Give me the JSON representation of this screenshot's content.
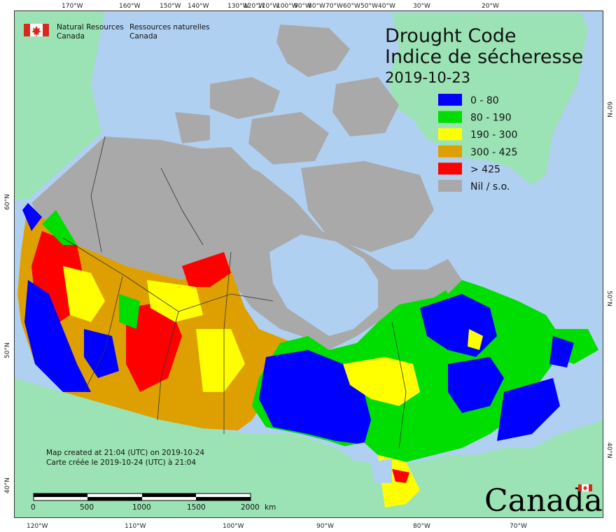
{
  "title_en": "Drought Code",
  "title_fr": "Indice de sécheresse",
  "date": "2019-10-23",
  "agency": {
    "en_line1": "Natural Resources",
    "en_line2": "Canada",
    "fr_line1": "Ressources naturelles",
    "fr_line2": "Canada"
  },
  "legend": [
    {
      "label": "0 - 80",
      "color": "#0000ff"
    },
    {
      "label": "80 - 190",
      "color": "#00dd00"
    },
    {
      "label": "190 - 300",
      "color": "#ffff00"
    },
    {
      "label": "300 - 425",
      "color": "#dda000"
    },
    {
      "label": "> 425",
      "color": "#ff0000"
    },
    {
      "label": "Nil / s.o.",
      "color": "#a9a9a9"
    }
  ],
  "credits": {
    "line1": "Map created at 21:04 (UTC) on 2019-10-24",
    "line2": "Carte créée le 2019-10-24 (UTC) à 21:04"
  },
  "scale_bar": {
    "labels": [
      "0",
      "500",
      "1000",
      "1500",
      "2000"
    ],
    "unit": "km"
  },
  "wordmark": "Canada",
  "top_longitudes": [
    "170°W",
    "160°W",
    "150°W",
    "140°W",
    "130°W",
    "120°W",
    "110°W",
    "100°W",
    "90°W",
    "80°W",
    "70°W",
    "60°W",
    "50°W",
    "40°W",
    "30°W",
    "20°W"
  ],
  "bottom_longitudes": [
    "120°W",
    "110°W",
    "100°W",
    "90°W",
    "80°W",
    "70°W"
  ],
  "left_latitudes": [
    "60°N",
    "50°N",
    "40°N"
  ],
  "right_latitudes": [
    "60°N",
    "50°N",
    "40°N"
  ],
  "colors": {
    "ocean": "#b0d0f2",
    "land_other": "#9be3b4",
    "nil": "#a9a9a9",
    "border": "#333333"
  }
}
